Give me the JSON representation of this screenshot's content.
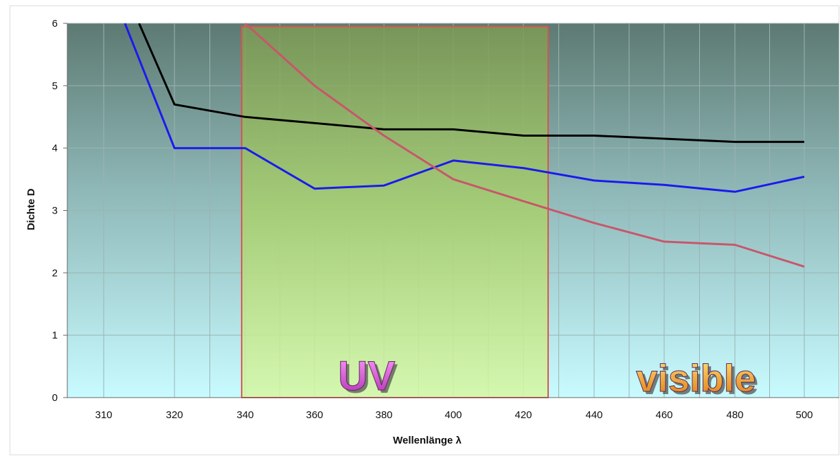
{
  "chart_data": {
    "type": "line",
    "title": "",
    "xlabel": "Wellenlänge λ",
    "ylabel": "Dichte D",
    "x_ticks": [
      310,
      320,
      340,
      360,
      380,
      400,
      420,
      440,
      460,
      480,
      500
    ],
    "y_ticks": [
      0,
      1,
      2,
      3,
      4,
      5,
      6
    ],
    "ylim": [
      0,
      6
    ],
    "grid": true,
    "legend": "none",
    "colors": {
      "background_top": "#5d7a72",
      "background_bottom": "#c8fbff",
      "uv_band_fill": "#c6ef7a",
      "uv_band_border": "#d9534f"
    },
    "series": [
      {
        "color": "#000000",
        "points": [
          [
            315,
            6.0
          ],
          [
            320,
            4.7
          ],
          [
            340,
            4.5
          ],
          [
            360,
            4.4
          ],
          [
            380,
            4.3
          ],
          [
            400,
            4.3
          ],
          [
            420,
            4.2
          ],
          [
            440,
            4.2
          ],
          [
            460,
            4.15
          ],
          [
            480,
            4.1
          ],
          [
            500,
            4.1
          ]
        ]
      },
      {
        "color": "#1a1aee",
        "points": [
          [
            313,
            6.0
          ],
          [
            320,
            4.0
          ],
          [
            340,
            4.0
          ],
          [
            360,
            3.35
          ],
          [
            380,
            3.4
          ],
          [
            400,
            3.8
          ],
          [
            420,
            3.68
          ],
          [
            440,
            3.48
          ],
          [
            460,
            3.41
          ],
          [
            480,
            3.3
          ],
          [
            500,
            3.54
          ]
        ]
      },
      {
        "color": "#c8566b",
        "points": [
          [
            340,
            6.0
          ],
          [
            360,
            5.0
          ],
          [
            380,
            4.2
          ],
          [
            400,
            3.5
          ],
          [
            420,
            3.15
          ],
          [
            440,
            2.8
          ],
          [
            460,
            2.5
          ],
          [
            480,
            2.45
          ],
          [
            500,
            2.1
          ]
        ]
      }
    ],
    "bands": [
      {
        "label": "UV",
        "x_from": 339,
        "x_to": 427,
        "y_from": 0,
        "y_to": 5.95,
        "label_color": "#d64fd6"
      },
      {
        "label": "visible",
        "x_from": 427,
        "x_to": 510,
        "label_color": "#f0a020"
      }
    ]
  }
}
